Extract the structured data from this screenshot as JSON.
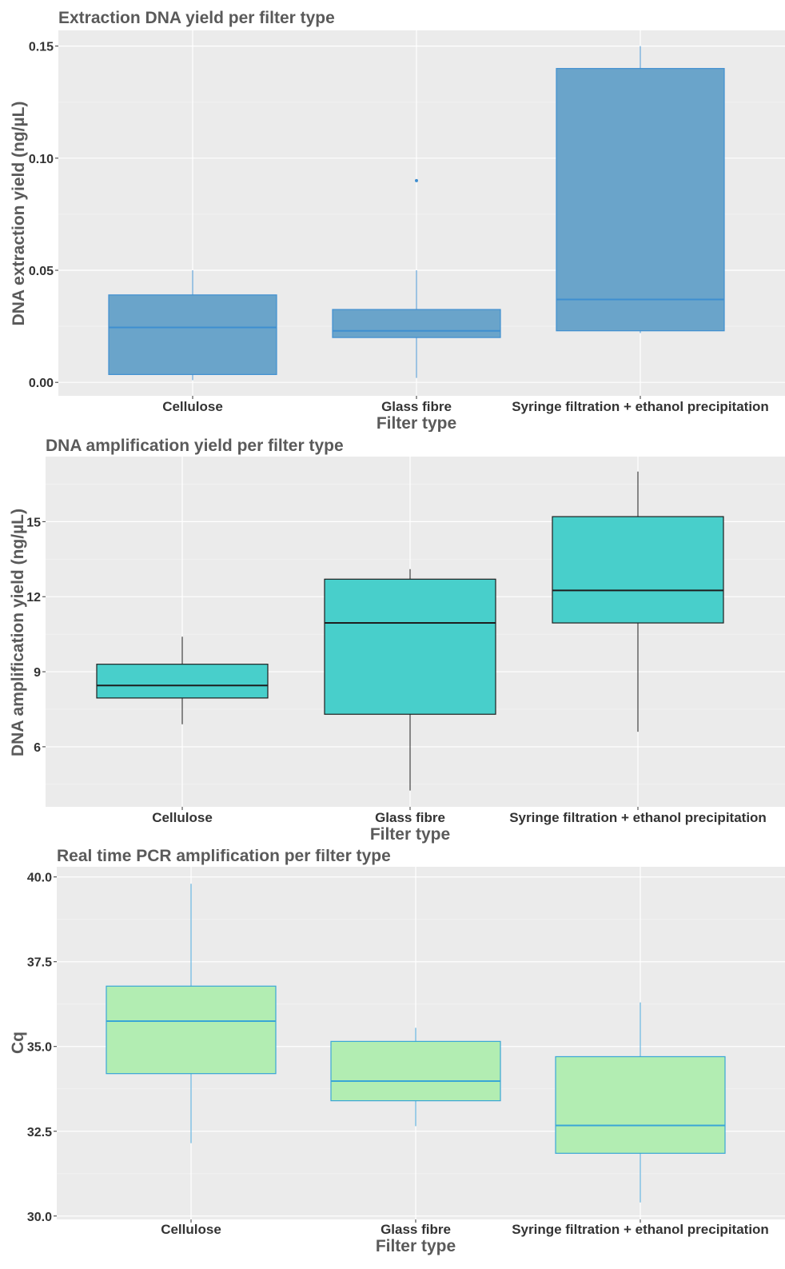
{
  "charts": [
    {
      "chart_data": {
        "type": "boxplot",
        "title": "Extraction DNA yield per filter type",
        "xlabel": "Filter type",
        "ylabel": "DNA extraction yield (ng/µL)",
        "ylim": [
          -0.006,
          0.157
        ],
        "yticks": [
          0.0,
          0.05,
          0.1,
          0.15
        ],
        "ytick_labels": [
          "0.00",
          "0.05",
          "0.10",
          "0.15"
        ],
        "categories": [
          "Cellulose",
          "Glass fibre",
          "Syringe filtration + ethanol precipitation"
        ],
        "boxes": [
          {
            "whisker_low": 0.001,
            "q1": 0.0035,
            "median": 0.0245,
            "q3": 0.039,
            "whisker_high": 0.05,
            "outliers": []
          },
          {
            "whisker_low": 0.002,
            "q1": 0.02,
            "median": 0.023,
            "q3": 0.0325,
            "whisker_high": 0.05,
            "outliers": [
              0.09
            ]
          },
          {
            "whisker_low": 0.022,
            "q1": 0.023,
            "median": 0.037,
            "q3": 0.14,
            "whisker_high": 0.15,
            "outliers": []
          }
        ],
        "grid": true,
        "box_fill": "#6aa4ca",
        "box_stroke": "#3f8fd0",
        "whisker_color": "#4b97d6",
        "background": "#ebebeb"
      }
    },
    {
      "chart_data": {
        "type": "boxplot",
        "title": "DNA amplification yield per filter type",
        "xlabel": "Filter type",
        "ylabel": "DNA amplification yield (ng/µL)",
        "ylim": [
          3.6,
          17.6
        ],
        "yticks": [
          6,
          9,
          12,
          15
        ],
        "ytick_labels": [
          "6",
          "9",
          "12",
          "15"
        ],
        "categories": [
          "Cellulose",
          "Glass fibre",
          "Syringe filtration + ethanol precipitation"
        ],
        "boxes": [
          {
            "whisker_low": 6.9,
            "q1": 7.95,
            "median": 8.45,
            "q3": 9.3,
            "whisker_high": 10.4,
            "outliers": []
          },
          {
            "whisker_low": 4.25,
            "q1": 7.3,
            "median": 10.95,
            "q3": 12.7,
            "whisker_high": 13.1,
            "outliers": []
          },
          {
            "whisker_low": 6.6,
            "q1": 10.95,
            "median": 12.25,
            "q3": 15.2,
            "whisker_high": 17.0,
            "outliers": []
          }
        ],
        "grid": true,
        "box_fill": "#48cfcb",
        "box_stroke": "#1e1e1e",
        "whisker_color": "#1e1e1e",
        "background": "#ebebeb"
      }
    },
    {
      "chart_data": {
        "type": "boxplot",
        "title": "Real time PCR amplification per filter type",
        "xlabel": "Filter type",
        "ylabel": "Cq",
        "ylim": [
          29.9,
          40.3
        ],
        "yticks": [
          30.0,
          32.5,
          35.0,
          37.5,
          40.0
        ],
        "ytick_labels": [
          "30.0",
          "32.5",
          "35.0",
          "37.5",
          "40.0"
        ],
        "categories": [
          "Cellulose",
          "Glass fibre",
          "Syringe filtration + ethanol precipitation"
        ],
        "boxes": [
          {
            "whisker_low": 32.15,
            "q1": 34.2,
            "median": 35.75,
            "q3": 36.78,
            "whisker_high": 39.8,
            "outliers": []
          },
          {
            "whisker_low": 32.65,
            "q1": 33.4,
            "median": 33.98,
            "q3": 35.15,
            "whisker_high": 35.55,
            "outliers": []
          },
          {
            "whisker_low": 30.4,
            "q1": 31.85,
            "median": 32.67,
            "q3": 34.7,
            "whisker_high": 36.3,
            "outliers": []
          }
        ],
        "grid": true,
        "box_fill": "#b2edb2",
        "box_stroke": "#3aa6d6",
        "whisker_color": "#4ba8dc",
        "background": "#ebebeb"
      }
    }
  ]
}
